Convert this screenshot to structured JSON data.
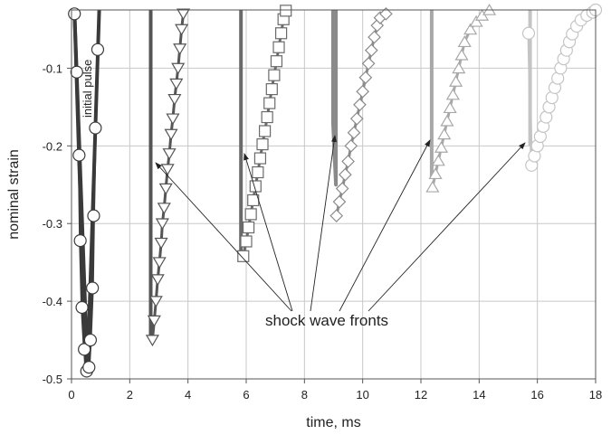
{
  "chart_data": {
    "type": "line",
    "title": "",
    "xlabel": "time, ms",
    "ylabel": "nominal strain",
    "xlim": [
      0,
      18
    ],
    "ylim": [
      -0.5,
      -0.025
    ],
    "x_ticks": [
      "0",
      "2",
      "4",
      "6",
      "8",
      "10",
      "12",
      "14",
      "16",
      "18"
    ],
    "y_ticks": [
      "-0.1",
      "-0.2",
      "-0.3",
      "-0.4",
      "-0.5"
    ],
    "grid": true,
    "legend": "none",
    "annotations": {
      "shock_label": "shock wave fronts",
      "initial_label": "initial pulse"
    },
    "series": [
      {
        "marker": "circle",
        "color": "#3a3a3a",
        "front": [
          [
            0.1,
            -0.025
          ],
          [
            0.18,
            -0.12
          ],
          [
            0.26,
            -0.22
          ],
          [
            0.36,
            -0.32
          ],
          [
            0.44,
            -0.41
          ],
          [
            0.5,
            -0.49
          ]
        ],
        "points": [
          [
            0.1,
            -0.03
          ],
          [
            0.18,
            -0.105
          ],
          [
            0.26,
            -0.212
          ],
          [
            0.3,
            -0.322
          ],
          [
            0.36,
            -0.408
          ],
          [
            0.44,
            -0.462
          ],
          [
            0.52,
            -0.49
          ],
          [
            0.6,
            -0.485
          ],
          [
            0.65,
            -0.45
          ],
          [
            0.72,
            -0.383
          ],
          [
            0.76,
            -0.29
          ],
          [
            0.82,
            -0.177
          ],
          [
            0.9,
            -0.076
          ]
        ],
        "line": [
          [
            0.1,
            -0.025
          ],
          [
            0.55,
            -0.49
          ],
          [
            0.95,
            -0.025
          ]
        ]
      },
      {
        "marker": "triangle-down",
        "color": "#555555",
        "front": [
          [
            2.72,
            -0.025
          ],
          [
            2.72,
            -0.45
          ]
        ],
        "points": [
          [
            2.78,
            -0.45
          ],
          [
            2.84,
            -0.425
          ],
          [
            2.9,
            -0.4
          ],
          [
            2.96,
            -0.372
          ],
          [
            3.02,
            -0.35
          ],
          [
            3.08,
            -0.325
          ],
          [
            3.12,
            -0.3
          ],
          [
            3.18,
            -0.28
          ],
          [
            3.24,
            -0.255
          ],
          [
            3.3,
            -0.23
          ],
          [
            3.36,
            -0.21
          ],
          [
            3.42,
            -0.185
          ],
          [
            3.48,
            -0.165
          ],
          [
            3.54,
            -0.14
          ],
          [
            3.6,
            -0.12
          ],
          [
            3.66,
            -0.1
          ],
          [
            3.72,
            -0.075
          ],
          [
            3.78,
            -0.05
          ],
          [
            3.84,
            -0.03
          ]
        ]
      },
      {
        "marker": "square",
        "color": "#6a6a6a",
        "front": [
          [
            5.82,
            -0.025
          ],
          [
            5.82,
            -0.34
          ]
        ],
        "points": [
          [
            5.9,
            -0.342
          ],
          [
            6.0,
            -0.323
          ],
          [
            6.08,
            -0.305
          ],
          [
            6.16,
            -0.288
          ],
          [
            6.24,
            -0.27
          ],
          [
            6.32,
            -0.252
          ],
          [
            6.4,
            -0.234
          ],
          [
            6.48,
            -0.216
          ],
          [
            6.56,
            -0.198
          ],
          [
            6.64,
            -0.181
          ],
          [
            6.72,
            -0.163
          ],
          [
            6.8,
            -0.145
          ],
          [
            6.88,
            -0.127
          ],
          [
            6.96,
            -0.109
          ],
          [
            7.04,
            -0.091
          ],
          [
            7.12,
            -0.073
          ],
          [
            7.2,
            -0.055
          ],
          [
            7.28,
            -0.037
          ],
          [
            7.36,
            -0.026
          ]
        ]
      },
      {
        "marker": "diamond",
        "color": "#8a8a8a",
        "front": [
          [
            8.98,
            -0.025
          ],
          [
            8.98,
            -0.17
          ],
          [
            9.08,
            -0.25
          ],
          [
            9.08,
            -0.025
          ]
        ],
        "points": [
          [
            9.1,
            -0.29
          ],
          [
            9.2,
            -0.272
          ],
          [
            9.3,
            -0.255
          ],
          [
            9.4,
            -0.237
          ],
          [
            9.5,
            -0.22
          ],
          [
            9.6,
            -0.2
          ],
          [
            9.7,
            -0.183
          ],
          [
            9.8,
            -0.165
          ],
          [
            9.9,
            -0.147
          ],
          [
            10.0,
            -0.13
          ],
          [
            10.1,
            -0.112
          ],
          [
            10.2,
            -0.094
          ],
          [
            10.3,
            -0.077
          ],
          [
            10.4,
            -0.06
          ],
          [
            10.5,
            -0.045
          ],
          [
            10.6,
            -0.035
          ],
          [
            10.8,
            -0.03
          ]
        ]
      },
      {
        "marker": "triangle-up",
        "color": "#a8a8a8",
        "front": [
          [
            12.37,
            -0.025
          ],
          [
            12.37,
            -0.24
          ]
        ],
        "points": [
          [
            12.4,
            -0.253
          ],
          [
            12.5,
            -0.236
          ],
          [
            12.6,
            -0.219
          ],
          [
            12.7,
            -0.202
          ],
          [
            12.8,
            -0.185
          ],
          [
            12.9,
            -0.168
          ],
          [
            13.0,
            -0.151
          ],
          [
            13.1,
            -0.134
          ],
          [
            13.2,
            -0.117
          ],
          [
            13.3,
            -0.1
          ],
          [
            13.4,
            -0.083
          ],
          [
            13.5,
            -0.066
          ],
          [
            13.7,
            -0.05
          ],
          [
            13.9,
            -0.04
          ],
          [
            14.1,
            -0.032
          ],
          [
            14.35,
            -0.025
          ]
        ]
      },
      {
        "marker": "circle",
        "color": "#c4c4c4",
        "front": [
          [
            15.75,
            -0.025
          ],
          [
            15.75,
            -0.2
          ]
        ],
        "points": [
          [
            15.7,
            -0.055
          ],
          [
            15.8,
            -0.225
          ],
          [
            15.9,
            -0.213
          ],
          [
            16.0,
            -0.2
          ],
          [
            16.1,
            -0.188
          ],
          [
            16.2,
            -0.175
          ],
          [
            16.3,
            -0.163
          ],
          [
            16.4,
            -0.15
          ],
          [
            16.5,
            -0.138
          ],
          [
            16.6,
            -0.125
          ],
          [
            16.7,
            -0.113
          ],
          [
            16.8,
            -0.1
          ],
          [
            16.9,
            -0.088
          ],
          [
            17.0,
            -0.077
          ],
          [
            17.1,
            -0.066
          ],
          [
            17.2,
            -0.056
          ],
          [
            17.35,
            -0.046
          ],
          [
            17.5,
            -0.038
          ],
          [
            17.7,
            -0.032
          ],
          [
            17.9,
            -0.028
          ],
          [
            18.0,
            -0.025
          ]
        ]
      }
    ]
  }
}
